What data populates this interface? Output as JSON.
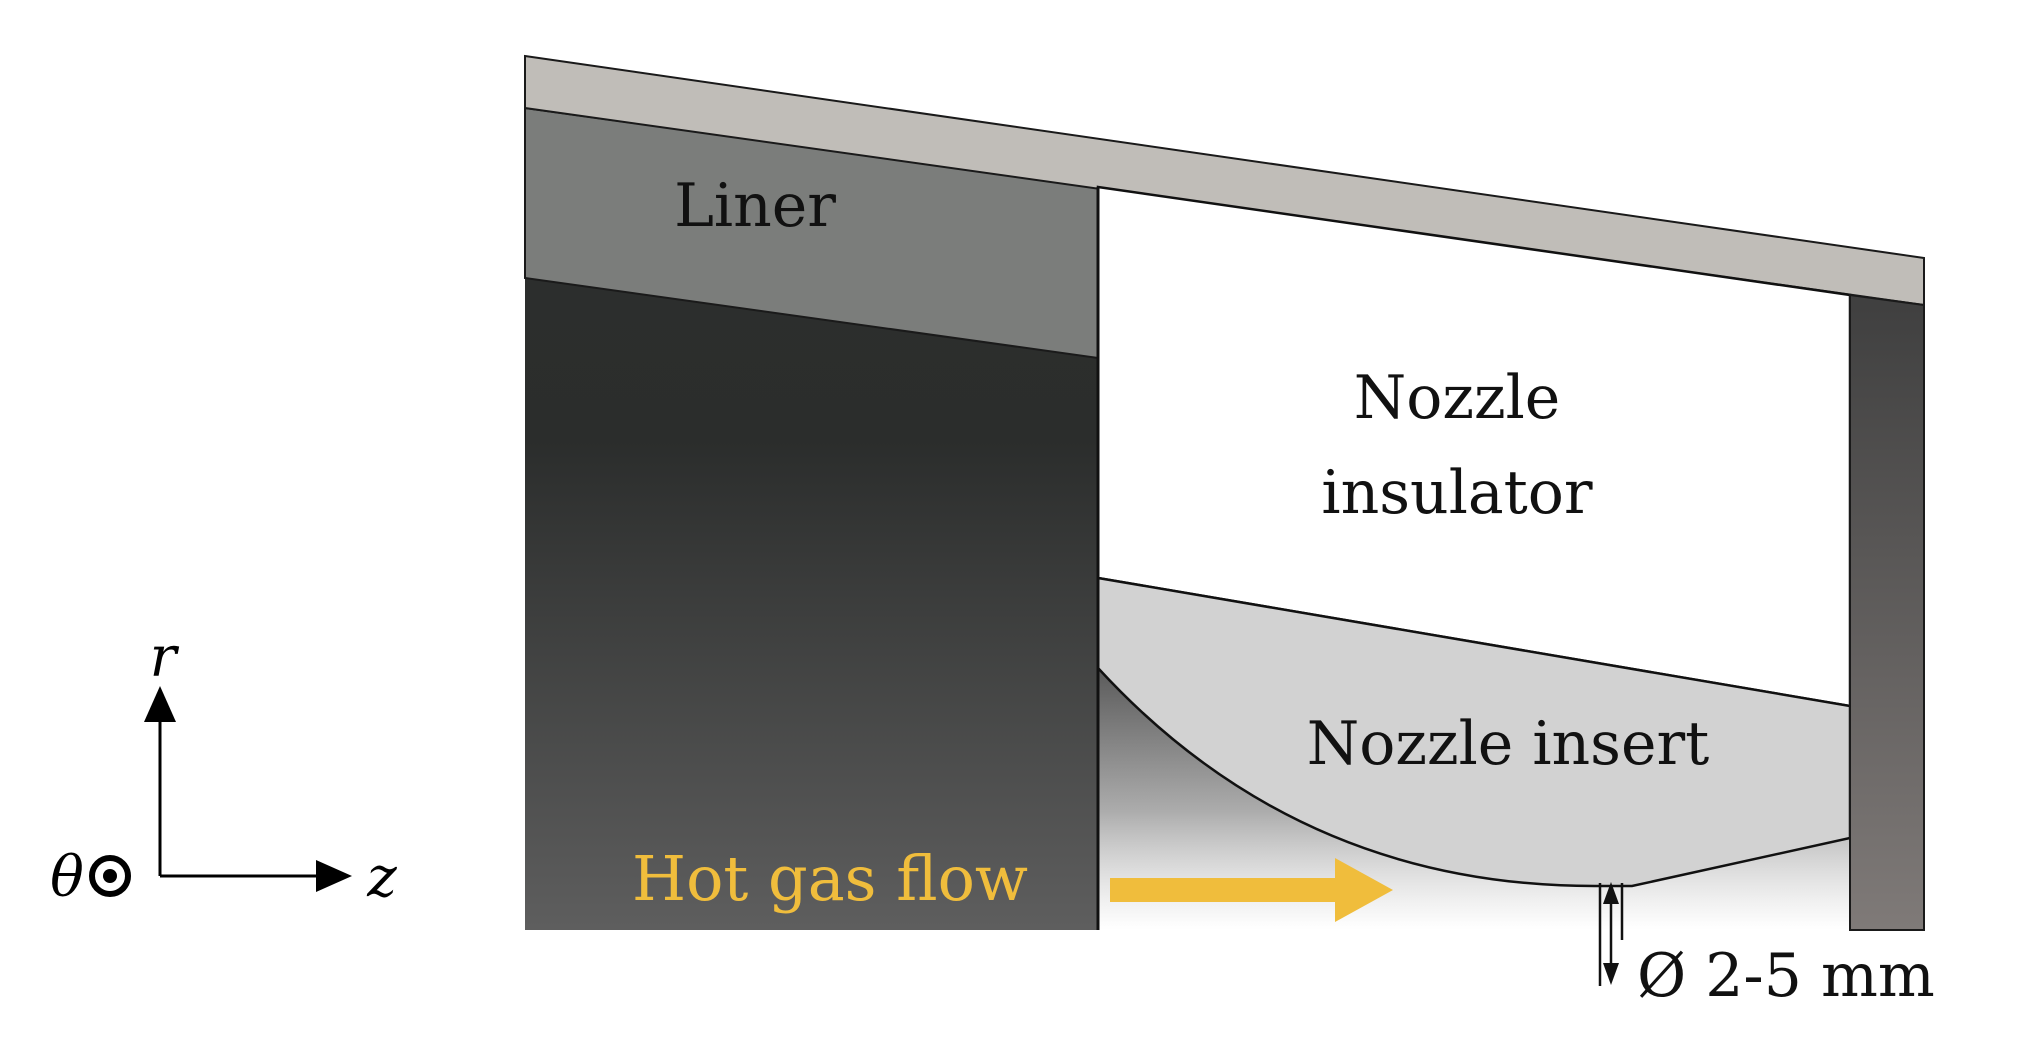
{
  "labels": {
    "liner": "Liner",
    "nozzle_insulator_line1": "Nozzle",
    "nozzle_insulator_line2": "insulator",
    "nozzle_insert": "Nozzle insert",
    "hot_gas_flow": "Hot gas flow",
    "diameter": "Ø 2-5 mm"
  },
  "axes": {
    "r": "r",
    "z": "z",
    "theta": "θ"
  },
  "colors": {
    "casing": "#c0bdb8",
    "liner": "#7b7d7b",
    "insulator": "#ffffff",
    "insert": "#d2d2d2",
    "flow": "#f0bd3c",
    "chamber_dark": "#2e302f",
    "chamber_light": "#5c5c5c"
  }
}
